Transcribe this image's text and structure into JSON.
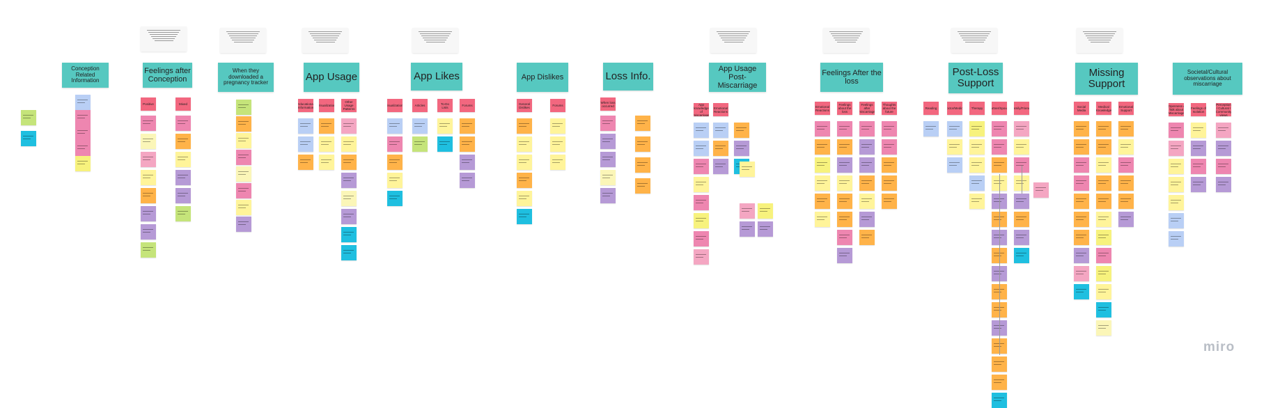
{
  "logo": "miro",
  "themes": [
    {
      "id": "conception",
      "label": "Conception Related Information",
      "size": "small"
    },
    {
      "id": "feelings-conception",
      "label": "Feelings after Conception",
      "size": "mid"
    },
    {
      "id": "downloaded",
      "label": "When they downloaded a pregnancy tracker",
      "size": "small"
    },
    {
      "id": "app-usage",
      "label": "App Usage",
      "size": "big"
    },
    {
      "id": "app-likes",
      "label": "App Likes",
      "size": "big"
    },
    {
      "id": "app-dislikes",
      "label": "App Dislikes",
      "size": "mid"
    },
    {
      "id": "loss-info",
      "label": "Loss Info.",
      "size": "big"
    },
    {
      "id": "usage-post",
      "label": "App Usage Post-Miscarriage",
      "size": "mid"
    },
    {
      "id": "feelings-loss",
      "label": "Feelings After the loss",
      "size": "mid"
    },
    {
      "id": "post-loss",
      "label": "Post-Loss Support",
      "size": "big"
    },
    {
      "id": "missing",
      "label": "Missing Support",
      "size": "big"
    },
    {
      "id": "societal",
      "label": "Societal/Cultural observations about miscarriage",
      "size": "small"
    }
  ],
  "headers": [
    {
      "id": "h-positive",
      "label": "Positive"
    },
    {
      "id": "h-mixed",
      "label": "Mixed"
    },
    {
      "id": "h-edu",
      "label": "Educational Information"
    },
    {
      "id": "h-vis",
      "label": "Visualization"
    },
    {
      "id": "h-other",
      "label": "Other Usage Patterns"
    },
    {
      "id": "h-lvis",
      "label": "Visualizations"
    },
    {
      "id": "h-articles",
      "label": "Articles"
    },
    {
      "id": "h-todo",
      "label": "To-Do Lists"
    },
    {
      "id": "h-forums",
      "label": "Forums"
    },
    {
      "id": "h-general",
      "label": "General Dislikes"
    },
    {
      "id": "h-dforums",
      "label": "Forums"
    },
    {
      "id": "h-when",
      "label": "When loss occurred"
    },
    {
      "id": "h-knowledge",
      "label": "App knowledge of miscarriage"
    },
    {
      "id": "h-intense",
      "label": "Emotional Reactions"
    },
    {
      "id": "h-grief",
      "label": "Feelings about the loss"
    },
    {
      "id": "h-physical",
      "label": "Feelings after miscarriage"
    },
    {
      "id": "h-future",
      "label": "Thoughts about the future"
    },
    {
      "id": "h-reading",
      "label": "Reading"
    },
    {
      "id": "h-doctor",
      "label": "Doctor/Medical"
    },
    {
      "id": "h-therapy",
      "label": "Therapy"
    },
    {
      "id": "h-partner",
      "label": "Partner/Spouse"
    },
    {
      "id": "h-family",
      "label": "Family/Friends"
    },
    {
      "id": "h-m1",
      "label": "Social Media"
    },
    {
      "id": "h-m2",
      "label": "Medical Knowledge"
    },
    {
      "id": "h-m3",
      "label": "Emotional Support"
    },
    {
      "id": "h-s1",
      "label": "Openness / Talk about Miscarriage"
    },
    {
      "id": "h-s2",
      "label": "Feelings of Isolation"
    },
    {
      "id": "h-s3",
      "label": "Perception / Cultural / Community views"
    }
  ],
  "colors": {
    "theme": "#56c8c0",
    "header": "#f2677f",
    "notes": [
      "#b9cff5",
      "#ee86b0",
      "#ffb349",
      "#fff49a",
      "#f7f27d",
      "#c5e47a",
      "#b69ad6",
      "#1fbfe0",
      "#fbf6b8",
      "#f4a6c2"
    ]
  }
}
